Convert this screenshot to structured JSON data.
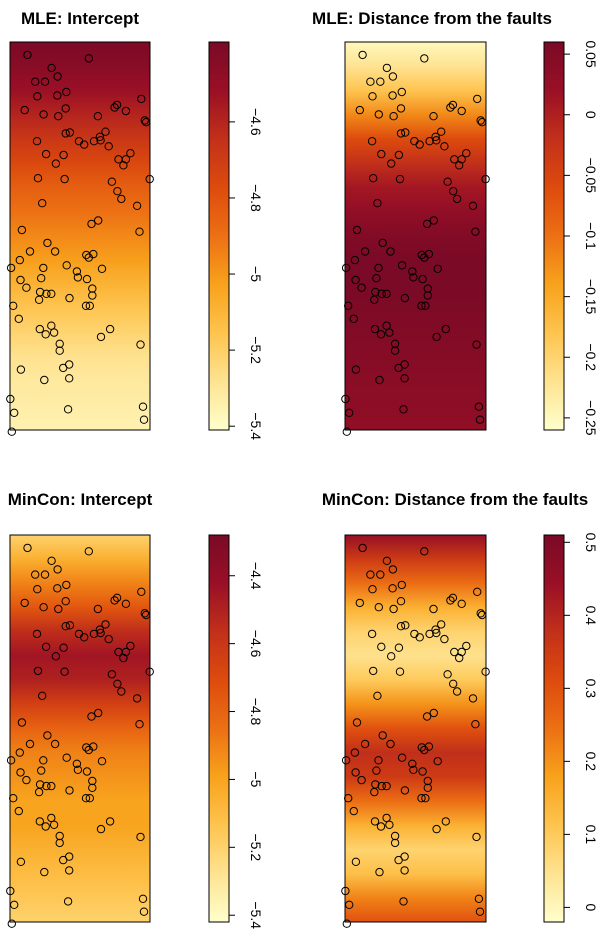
{
  "points": [
    [
      38.5,
      9.1
    ],
    [
      5.0,
      1.5
    ],
    [
      7.2,
      4.6
    ],
    [
      29.9,
      7.6
    ],
    [
      16.2,
      25.9
    ],
    [
      30.6,
      7.3
    ],
    [
      9.2,
      18.7
    ],
    [
      22.0,
      27.5
    ],
    [
      21.8,
      24.7
    ],
    [
      23.5,
      29.4
    ],
    [
      22.8,
      30.6
    ],
    [
      26.0,
      34.2
    ],
    [
      12.6,
      33.7
    ],
    [
      11.8,
      32.9
    ],
    [
      13.6,
      4.0
    ],
    [
      15.9,
      7.7
    ],
    [
      37.5,
      6.6
    ],
    [
      0.3,
      26.2
    ],
    [
      12.9,
      24.3
    ],
    [
      8.9,
      27.4
    ],
    [
      11.9,
      3.0
    ],
    [
      10.4,
      29.2
    ],
    [
      9.5,
      26.2
    ],
    [
      1.2,
      43.0
    ],
    [
      2.5,
      32.1
    ],
    [
      3.1,
      38.0
    ],
    [
      9.6,
      8.4
    ],
    [
      9.8,
      39.2
    ],
    [
      13.1,
      14.1
    ],
    [
      17.0,
      29.7
    ],
    [
      15.2,
      37.8
    ],
    [
      16.6,
      42.6
    ],
    [
      7.7,
      11.5
    ],
    [
      4.7,
      28.5
    ],
    [
      19.4,
      27.3
    ],
    [
      3.0,
      27.6
    ],
    [
      2.8,
      25.3
    ],
    [
      38.3,
      43.8
    ],
    [
      5.7,
      24.3
    ],
    [
      10.7,
      23.3
    ],
    [
      19.7,
      11.5
    ],
    [
      25.2,
      20.7
    ],
    [
      14.2,
      35.8
    ],
    [
      10.0,
      4.6
    ],
    [
      27.3,
      10.4
    ],
    [
      13.8,
      8.6
    ],
    [
      13.5,
      6.2
    ],
    [
      16.1,
      5.8
    ],
    [
      15.3,
      13.1
    ],
    [
      0.1,
      41.4
    ],
    [
      28.2,
      12.1
    ],
    [
      8.0,
      15.8
    ],
    [
      14.2,
      35.0
    ],
    [
      33.1,
      13.6
    ],
    [
      0.9,
      30.6
    ],
    [
      8.5,
      33.3
    ],
    [
      38.9,
      9.3
    ],
    [
      7.8,
      6.3
    ],
    [
      25.7,
      11.0
    ],
    [
      0.5,
      45.2
    ],
    [
      29.1,
      16.2
    ],
    [
      36.3,
      19.0
    ],
    [
      8.3,
      29.9
    ],
    [
      11.8,
      29.2
    ],
    [
      16.9,
      39.0
    ],
    [
      34.4,
      12.9
    ],
    [
      39.9,
      15.9
    ],
    [
      26.3,
      26.3
    ],
    [
      15.6,
      15.9
    ],
    [
      21.2,
      11.9
    ],
    [
      23.3,
      21.1
    ],
    [
      25.9,
      11.4
    ],
    [
      8.6,
      29.0
    ],
    [
      23.5,
      28.6
    ],
    [
      31.8,
      18.2
    ],
    [
      10.2,
      33.9
    ],
    [
      30.7,
      17.3
    ],
    [
      24.0,
      11.5
    ],
    [
      31.0,
      13.6
    ],
    [
      37.3,
      35.1
    ],
    [
      21.7,
      30.6
    ],
    [
      32.4,
      14.3
    ],
    [
      3.4,
      21.8
    ],
    [
      17.1,
      10.5
    ],
    [
      10.3,
      13.0
    ],
    [
      16.9,
      37.4
    ],
    [
      4.2,
      7.9
    ],
    [
      37.0,
      22.0
    ],
    [
      23.8,
      24.6
    ],
    [
      22.5,
      25.0
    ],
    [
      33.1,
      8.0
    ],
    [
      19.1,
      26.6
    ],
    [
      15.9,
      10.6
    ],
    [
      22.5,
      1.9
    ],
    [
      28.6,
      33.3
    ],
    [
      25.1,
      8.6
    ],
    [
      38.0,
      42.3
    ]
  ],
  "chart_data": [
    {
      "type": "heatmap",
      "title": "MLE: Intercept",
      "colorbar_ticks": [
        -4.6,
        -4.8,
        -5,
        -5.2,
        -5.4
      ],
      "colorbar_tick_labels": [
        "−4.6",
        "−4.8",
        "−5",
        "−5.2",
        "−5.4"
      ],
      "colorbar_range": [
        -5.41,
        -4.39
      ],
      "surface_rows": [
        -4.4,
        -4.45,
        -4.52,
        -4.6,
        -4.68,
        -4.76,
        -4.84,
        -4.9,
        -4.96,
        -5.02,
        -5.09,
        -5.16,
        -5.22,
        -5.28,
        -5.31,
        -5.33,
        -5.35
      ],
      "points_key": "points"
    },
    {
      "type": "heatmap",
      "title": "MLE: Distance from the faults",
      "colorbar_ticks": [
        0.05,
        0,
        -0.05,
        -0.1,
        -0.15,
        -0.2,
        -0.25
      ],
      "colorbar_tick_labels": [
        "0.05",
        "0",
        "−0.05",
        "−0.1",
        "−0.15",
        "−0.2",
        "−0.25"
      ],
      "colorbar_range": [
        -0.26,
        0.06
      ],
      "surface_rows": [
        -0.25,
        -0.22,
        -0.18,
        -0.12,
        -0.06,
        -0.02,
        0.01,
        0.03,
        0.05,
        0.06,
        0.06,
        0.055,
        0.05,
        0.045,
        0.04,
        0.035,
        0.03
      ],
      "points_key": "points"
    },
    {
      "type": "heatmap",
      "title": "MinCon: Intercept",
      "colorbar_ticks": [
        -4.4,
        -4.6,
        -4.8,
        -5,
        -5.2,
        -5.4
      ],
      "colorbar_tick_labels": [
        "−4.4",
        "−4.6",
        "−4.8",
        "−5",
        "−5.2",
        "−5.4"
      ],
      "colorbar_range": [
        -5.42,
        -4.28
      ],
      "surface_rows": [
        -5.2,
        -5.05,
        -4.9,
        -4.75,
        -4.55,
        -4.45,
        -4.5,
        -4.65,
        -4.8,
        -4.9,
        -4.95,
        -5.0,
        -5.0,
        -5.05,
        -5.1,
        -5.15,
        -5.2
      ],
      "points_key": "points"
    },
    {
      "type": "heatmap",
      "title": "MinCon: Distance from the faults",
      "colorbar_ticks": [
        0.5,
        0.4,
        0.3,
        0.2,
        0.1,
        0
      ],
      "colorbar_tick_labels": [
        "0.5",
        "0.4",
        "0.3",
        "0.2",
        "0.1",
        "0"
      ],
      "colorbar_range": [
        -0.02,
        0.51
      ],
      "surface_rows": [
        0.45,
        0.35,
        0.25,
        0.15,
        0.08,
        0.05,
        0.1,
        0.2,
        0.3,
        0.38,
        0.35,
        0.25,
        0.15,
        0.08,
        0.12,
        0.22,
        0.3
      ],
      "points_key": "points"
    }
  ],
  "colors": {
    "ramp": [
      "#FFFFCC",
      "#FEE391",
      "#FEC44F",
      "#F8A21C",
      "#EC7014",
      "#DD4B0E",
      "#C2301A",
      "#990F26",
      "#7A0A26"
    ],
    "point_stroke": "#000000",
    "frame": "#000000"
  }
}
